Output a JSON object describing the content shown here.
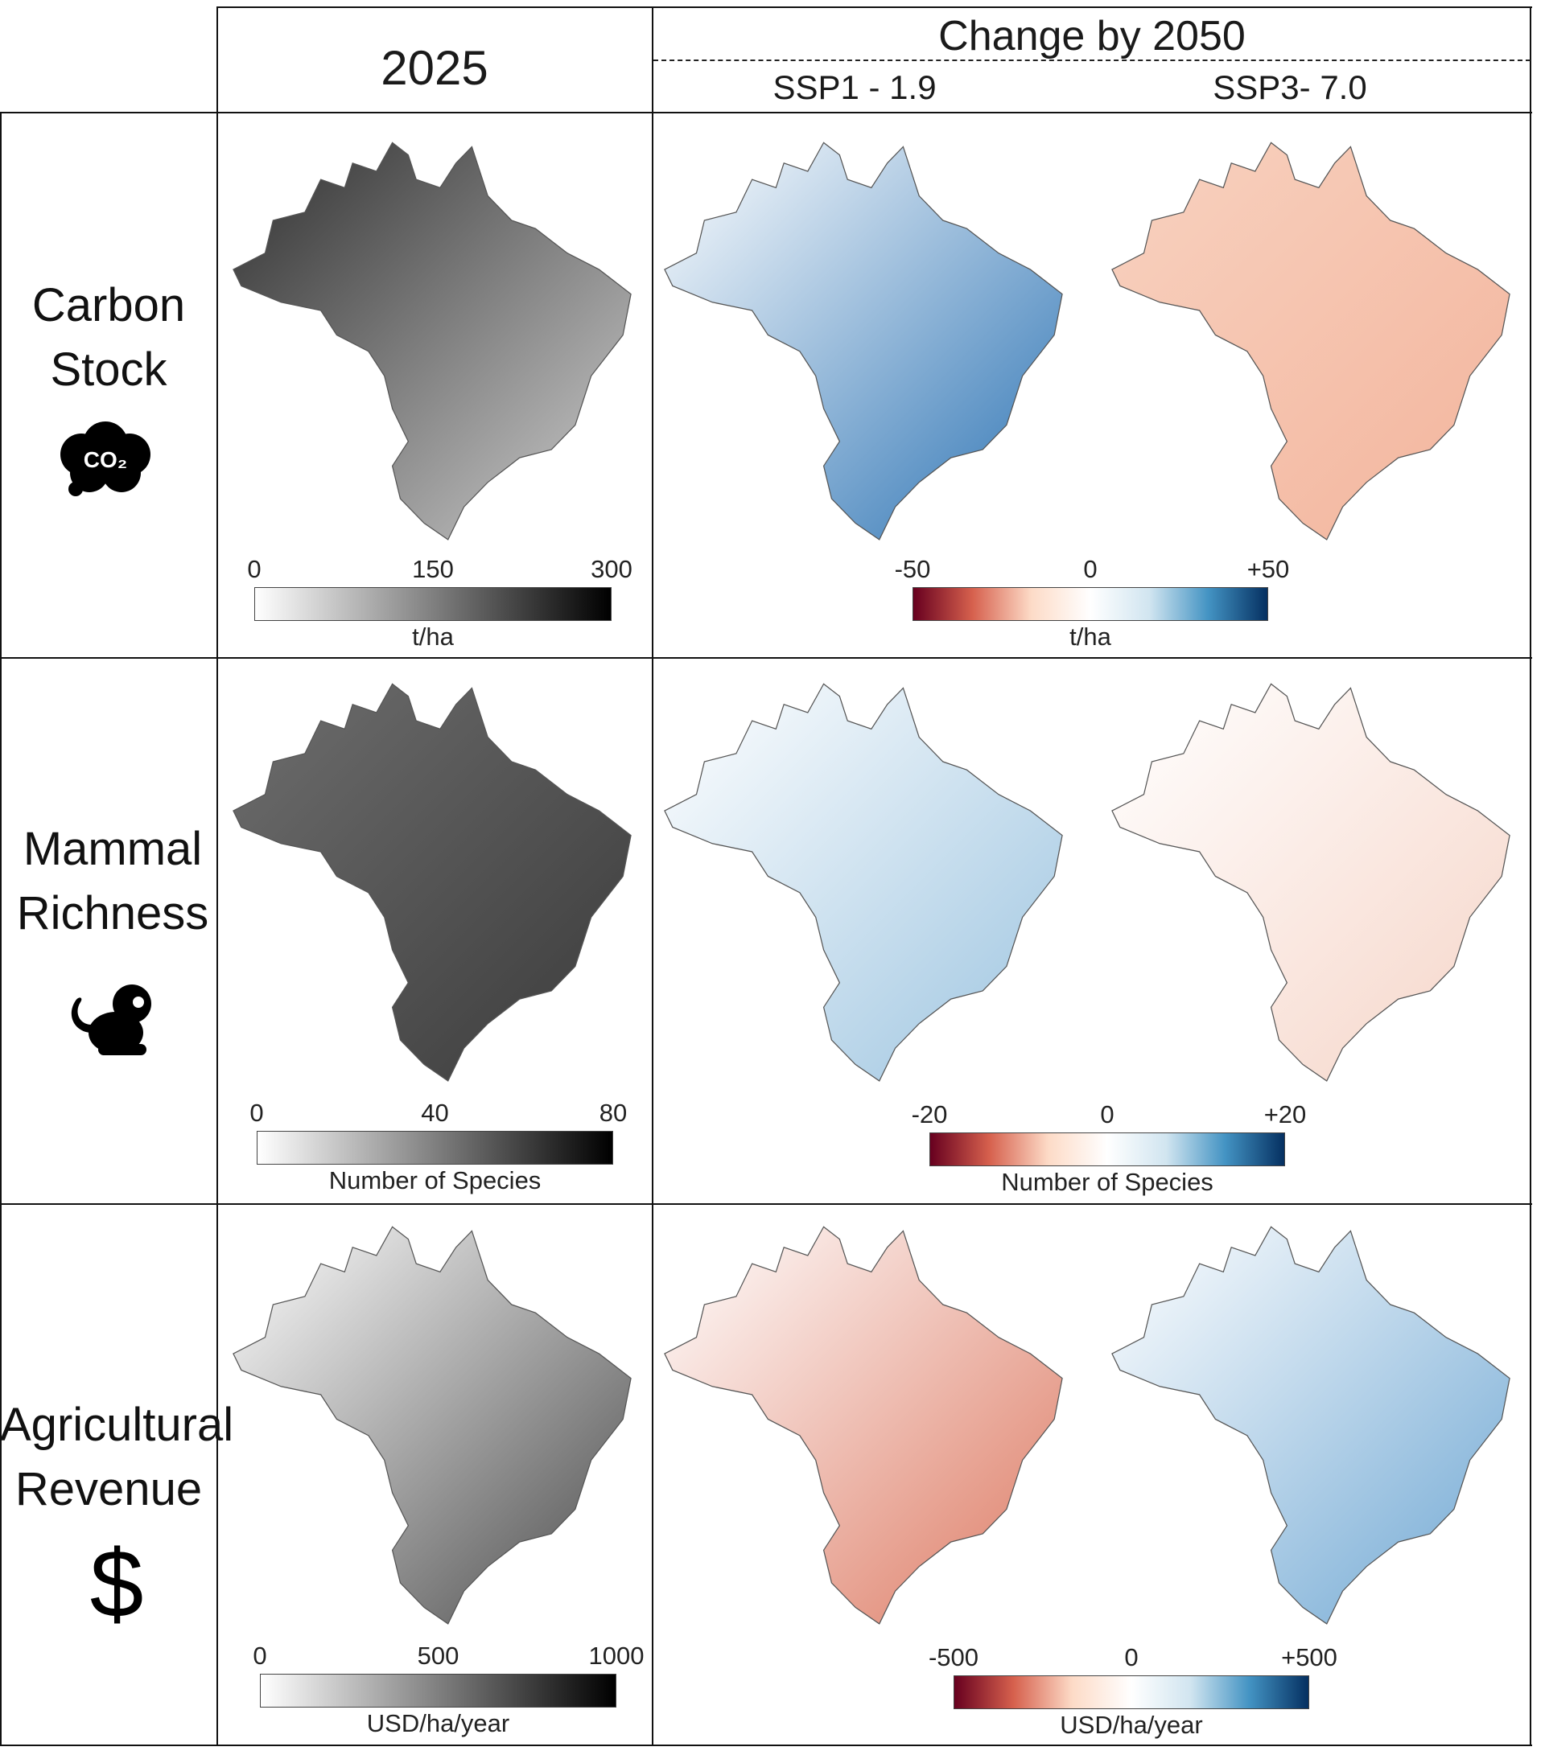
{
  "header": {
    "col_2025": "2025",
    "change_title": "Change by 2050",
    "scenario_1": "SSP1 - 1.9",
    "scenario_2": "SSP3- 7.0"
  },
  "rows": [
    {
      "label_line1": "Carbon",
      "label_line2": "Stock",
      "icon": "co2-cloud-icon",
      "icon_text": "CO₂",
      "baseline_scale": {
        "ticks": [
          "0",
          "150",
          "300"
        ],
        "unit": "t/ha"
      },
      "change_scale": {
        "ticks": [
          "-50",
          "0",
          "+50"
        ],
        "unit": "t/ha"
      }
    },
    {
      "label_line1": "Mammal",
      "label_line2": "Richness",
      "icon": "monkey-icon",
      "baseline_scale": {
        "ticks": [
          "0",
          "40",
          "80"
        ],
        "unit": "Number of Species"
      },
      "change_scale": {
        "ticks": [
          "-20",
          "0",
          "+20"
        ],
        "unit": "Number of Species"
      }
    },
    {
      "label_line1": "Agricultural",
      "label_line2": "Revenue",
      "icon": "dollar-icon",
      "icon_text": "$",
      "baseline_scale": {
        "ticks": [
          "0",
          "500",
          "1000"
        ],
        "unit": "USD/ha/year"
      },
      "change_scale": {
        "ticks": [
          "-500",
          "0",
          "+500"
        ],
        "unit": "USD/ha/year"
      }
    }
  ],
  "colors": {
    "sequential": [
      "#ffffff",
      "#000000"
    ],
    "diverging": [
      "#67001f",
      "#d6604d",
      "#fddbc7",
      "#ffffff",
      "#d1e5f0",
      "#4393c3",
      "#053061"
    ],
    "maps": [
      [
        [
          "#2e2e2e",
          "#d0d0d0"
        ],
        [
          "#ffffff",
          "#2c73b4"
        ],
        [
          "#f8d2c0",
          "#f3b49c"
        ]
      ],
      [
        [
          "#6e6e6e",
          "#3a3a3a"
        ],
        [
          "#ffffff",
          "#9cc4e0"
        ],
        [
          "#ffffff",
          "#f6d5c8"
        ]
      ],
      [
        [
          "#ffffff",
          "#4a4a4a"
        ],
        [
          "#ffffff",
          "#dd7a63"
        ],
        [
          "#ffffff",
          "#6fa7d3"
        ]
      ]
    ]
  }
}
